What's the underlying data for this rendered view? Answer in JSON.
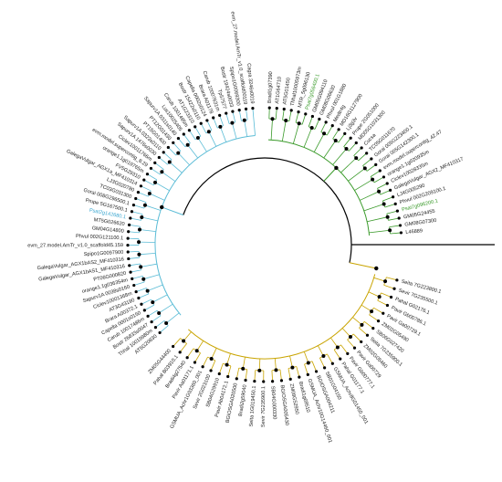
{
  "clades": [
    {
      "color": "#5bbcd6",
      "leaves": [
        "AT5G20830",
        "Thhal 10019980m",
        "Bostr 26833s0047",
        "Carub 10017486m",
        "Capella 0001s0150",
        "Brara A00372.1",
        "AT3G43190",
        "Ciclev10001368m",
        "Sapurv1A 0038s0160",
        "orange1.1g036354m",
        "PT06G000820",
        "GalegaVulgar_AGX1bAS1_MF410316",
        "GalegaVulgar_AGX1bAS2_MF410316",
        "Spipo1G0097900",
        "evm_27.model.AmTr_v1.0_scaffold45.159",
        "Phvul 002G121100.1",
        "GM04G14800",
        "MT5G026620",
        {
          "label": "Psat2g142680.1",
          "color": "#3aa6d0"
        },
        "Prupe 5G167500.1",
        "Gorai 008G296500.1",
        "TC03G031300",
        "LJ3G020780",
        "GalegaVulgar_AGX1a_MF410314",
        "FV5G29310",
        "orange1.1g019765m",
        "evm.model.supercontig_8.29",
        "Ciclev10011766m",
        "Sapurv1A 1476s0030",
        "Sapurv1A 0323s0110",
        "PT15G01400",
        "PT12G01430",
        "Sapurv1A 0311s0140",
        "Lus10025405",
        "Carub 1001495m",
        "AT1G23310",
        "Bostr 15422s0110",
        "Capella 0002s0124",
        "Brara A01178",
        "Carub 10007631m",
        "Tp57577",
        "Bostr 19424s0033",
        "Spipo1G0069300",
        "evm_27.model.AmTr_v1.0_scaffold00119",
        "Cagra 3246s0019"
      ]
    },
    {
      "color": "#3a9a2a",
      "leaves": [
        "Bradi1g07390",
        "AT1G64710",
        "AT5G01450",
        "Thhal10005973m",
        "MTR_5g096130",
        {
          "label": "Psat7g056400.1",
          "color": "#3a9a2a"
        },
        "GM05G094110",
        "GM08G06630",
        "Phvul 001G1880",
        "Medtr4g",
        "MD16G1127900",
        "Lj3g3v",
        "Prupe 2G051000",
        "MD05G1031300",
        "Cucsa",
        "TC05G011670",
        "Gorai 005G223400.1",
        "Gorai 005G142300.1",
        "evm.model.supercontig_42.47",
        "orange1.1g020935m",
        "Ciclev10028335m",
        "GalegaVulgar_AGX2_MF410317",
        "LJ4G005290",
        "Phvul 002G209100.1",
        {
          "label": "Psat7g096200.1",
          "color": "#3a9a2a"
        },
        "GM05G24455",
        "GM08G07300",
        "L46889"
      ]
    },
    {
      "color": "#c9a400",
      "leaves": [
        "Seita 7G223800.1",
        "Sevir 7G235500.1",
        "Pahal G02176.1",
        "Pavir Gb00786.1",
        "Pavir Ga00729.1",
        "ZM02G05490",
        "SB06G027420",
        "Seita 7G235900.1",
        "ZM02G05460",
        "Pavir Ga00729",
        "Pavir Gb00777.1",
        "Pahal G01177.1",
        "GSMUA_Achr8G01450_001",
        "SB01G04150",
        "BGIOSGA004211",
        "GSMUA_Achr10G14460_001",
        "Bradi1g69510",
        "ZM08G52950",
        "BGIOSGA005430",
        "SB04G000330",
        "Sevir 7G235900.1",
        "Seita 1G019450.1",
        "Bradi2g59040",
        "BGIOSGA020500",
        "Pavir Ab04172.1",
        "SB04G29910",
        "Sevir 2G023100",
        "GSMUA_Achr1G03360_001",
        "Pavir Aa01171.1",
        "Bradi4g27540",
        "Pahal B03910.1",
        "ZM05G44400"
      ]
    }
  ]
}
